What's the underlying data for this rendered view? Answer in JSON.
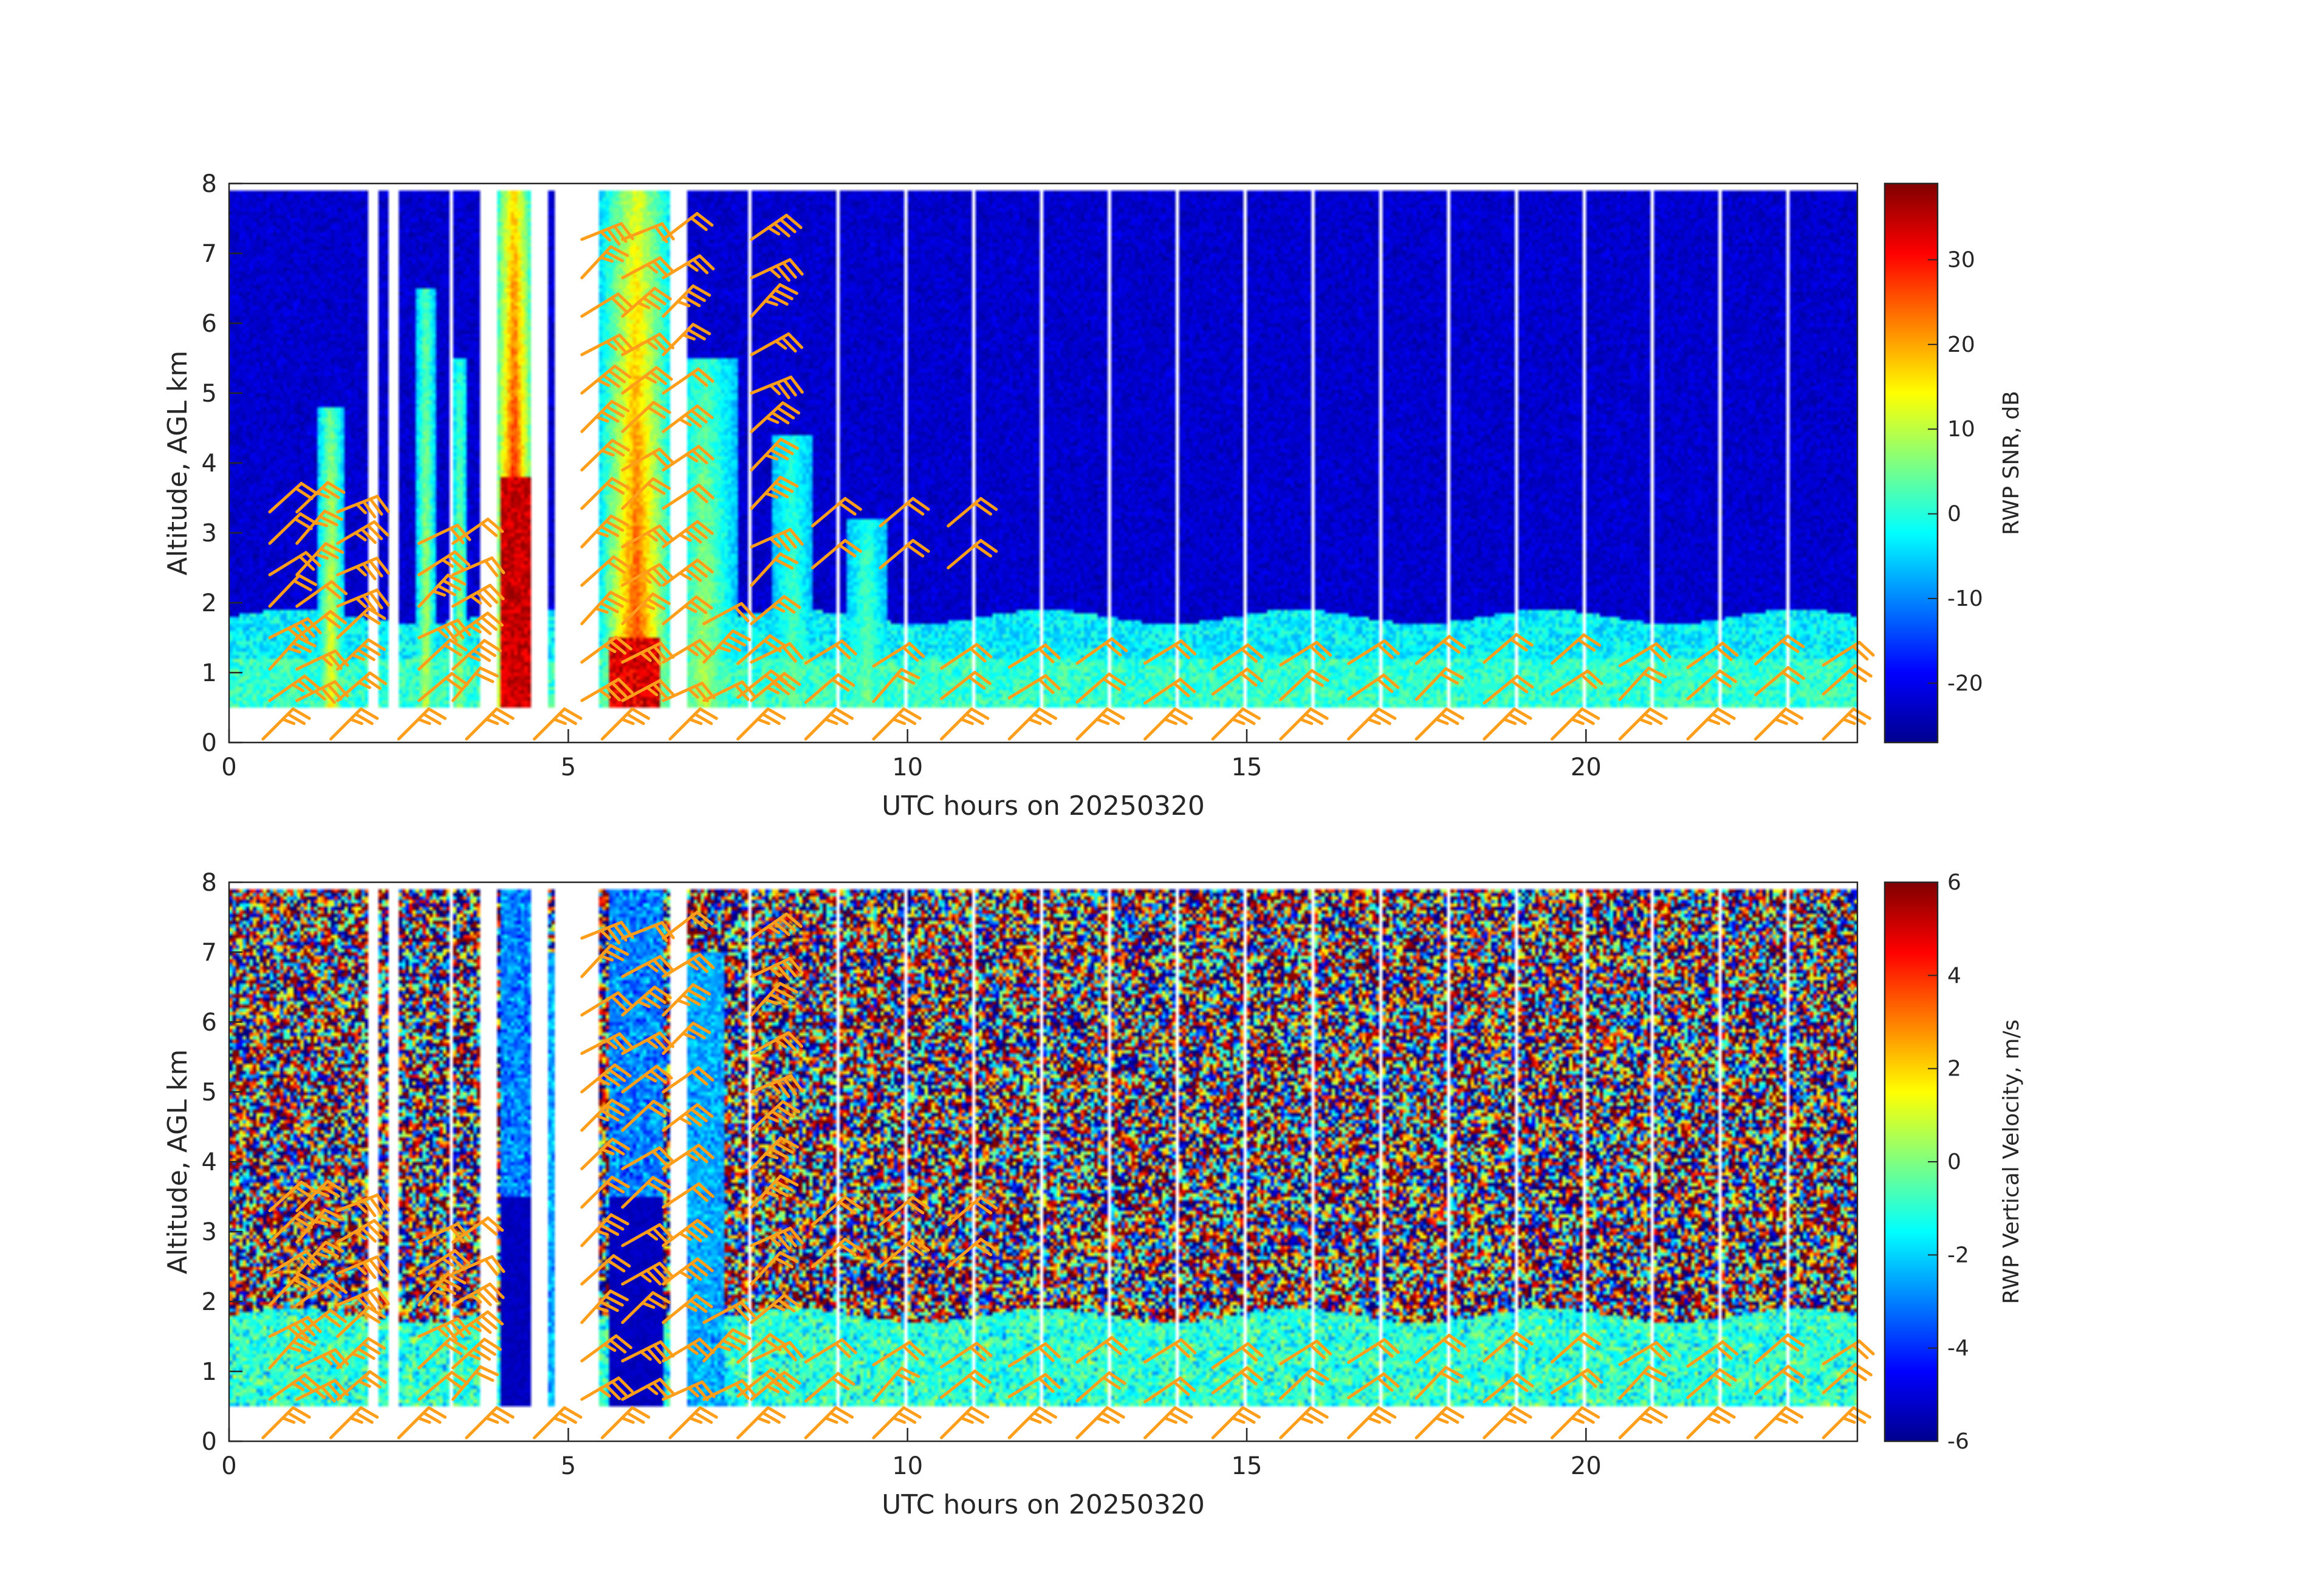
{
  "chart_data": [
    {
      "type": "heatmap",
      "variable": "snr",
      "xlabel": "UTC hours on 20250320",
      "ylabel": "Altitude, AGL km",
      "xlim": [
        0,
        24
      ],
      "ylim": [
        0,
        8
      ],
      "xticks": [
        "0",
        "5",
        "10",
        "15",
        "20"
      ],
      "yticks": [
        "0",
        "1",
        "2",
        "3",
        "4",
        "5",
        "6",
        "7",
        "8"
      ],
      "colorbar": {
        "label": "RWP SNR, dB",
        "range": [
          -27,
          39
        ],
        "ticks": [
          "-20",
          "-10",
          "0",
          "10",
          "20",
          "30"
        ],
        "colormap": "jet"
      },
      "data_coverage": {
        "lowest_gate_km": 0.5,
        "top_km": 7.9,
        "boundary_layer_top_km": 1.8
      },
      "overlay": "wind barbs (orange)"
    },
    {
      "type": "heatmap",
      "variable": "vertical_velocity",
      "xlabel": "UTC hours on 20250320",
      "ylabel": "Altitude, AGL km",
      "xlim": [
        0,
        24
      ],
      "ylim": [
        0,
        8
      ],
      "xticks": [
        "0",
        "5",
        "10",
        "15",
        "20"
      ],
      "yticks": [
        "0",
        "1",
        "2",
        "3",
        "4",
        "5",
        "6",
        "7",
        "8"
      ],
      "colorbar": {
        "label": "RWP Vertical Velocity, m/s",
        "range": [
          -6,
          6
        ],
        "ticks": [
          "-6",
          "-4",
          "-2",
          "0",
          "2",
          "4",
          "6"
        ],
        "colormap": "jet"
      },
      "data_coverage": {
        "lowest_gate_km": 0.5,
        "top_km": 7.9,
        "boundary_layer_top_km": 1.8
      },
      "overlay": "wind barbs (orange)"
    }
  ],
  "data_gaps_hours": [
    [
      2.05,
      2.2
    ],
    [
      2.35,
      2.5
    ],
    [
      3.25,
      3.3
    ],
    [
      3.7,
      3.95
    ],
    [
      4.45,
      4.7
    ],
    [
      4.8,
      5.45
    ],
    [
      6.5,
      6.75
    ],
    [
      7.65,
      7.7
    ],
    [
      8.95,
      9.0
    ],
    [
      9.95,
      10.0
    ],
    [
      10.95,
      11.0
    ],
    [
      11.95,
      12.0
    ],
    [
      12.95,
      13.0
    ],
    [
      13.95,
      14.0
    ],
    [
      14.95,
      15.0
    ],
    [
      15.95,
      16.0
    ],
    [
      16.95,
      17.0
    ],
    [
      17.95,
      18.0
    ],
    [
      18.95,
      19.0
    ],
    [
      19.95,
      20.0
    ],
    [
      20.95,
      21.0
    ],
    [
      21.95,
      22.0
    ],
    [
      22.95,
      23.0
    ]
  ],
  "colors": {
    "barb": "#ff9e1b",
    "axis": "#262626",
    "gap": "#ffffff"
  }
}
